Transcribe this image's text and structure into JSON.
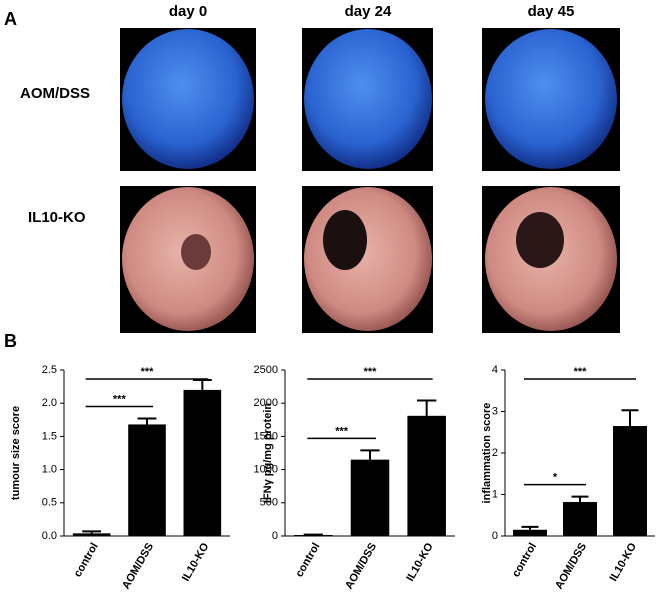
{
  "panel_a": {
    "label": "A",
    "columns": [
      "day 0",
      "day 24",
      "day 45"
    ],
    "rows": [
      "AOM/DSS",
      "IL10-KO"
    ]
  },
  "panel_b_label": "B",
  "chart_data": [
    {
      "type": "bar",
      "ylabel": "tumour size score",
      "categories": [
        "control",
        "AOM/DSS",
        "IL10-KO"
      ],
      "values": [
        0.04,
        1.68,
        2.2
      ],
      "errors": [
        0.03,
        0.09,
        0.15
      ],
      "color": "#000000",
      "ylim": [
        0,
        2.5
      ],
      "yticks": [
        {
          "value": 0,
          "label": "0.0"
        },
        0.5,
        {
          "value": 1,
          "label": "1.0"
        },
        1.5,
        {
          "value": 2,
          "label": "2.0"
        },
        2.5
      ],
      "annotations": [
        "***",
        "***"
      ]
    },
    {
      "type": "bar",
      "ylabel": "IFNγ pg/mg protein",
      "categories": [
        "control",
        "AOM/DSS",
        "IL10-KO"
      ],
      "values": [
        15,
        1150,
        1810
      ],
      "errors": [
        5,
        140,
        230
      ],
      "color": "#000000",
      "ylim": [
        0,
        2500
      ],
      "yticks": [
        0,
        500,
        1000,
        1500,
        2000,
        2500
      ],
      "annotations": [
        "***",
        "***"
      ]
    },
    {
      "type": "bar",
      "ylabel": "inflammation score",
      "categories": [
        "control",
        "AOM/DSS",
        "IL10-KO"
      ],
      "values": [
        0.15,
        0.82,
        2.65
      ],
      "errors": [
        0.07,
        0.13,
        0.38
      ],
      "color": "#000000",
      "ylim": [
        0,
        4
      ],
      "yticks": [
        0,
        1,
        2,
        3,
        4
      ],
      "annotations": [
        "*",
        "***"
      ]
    }
  ]
}
